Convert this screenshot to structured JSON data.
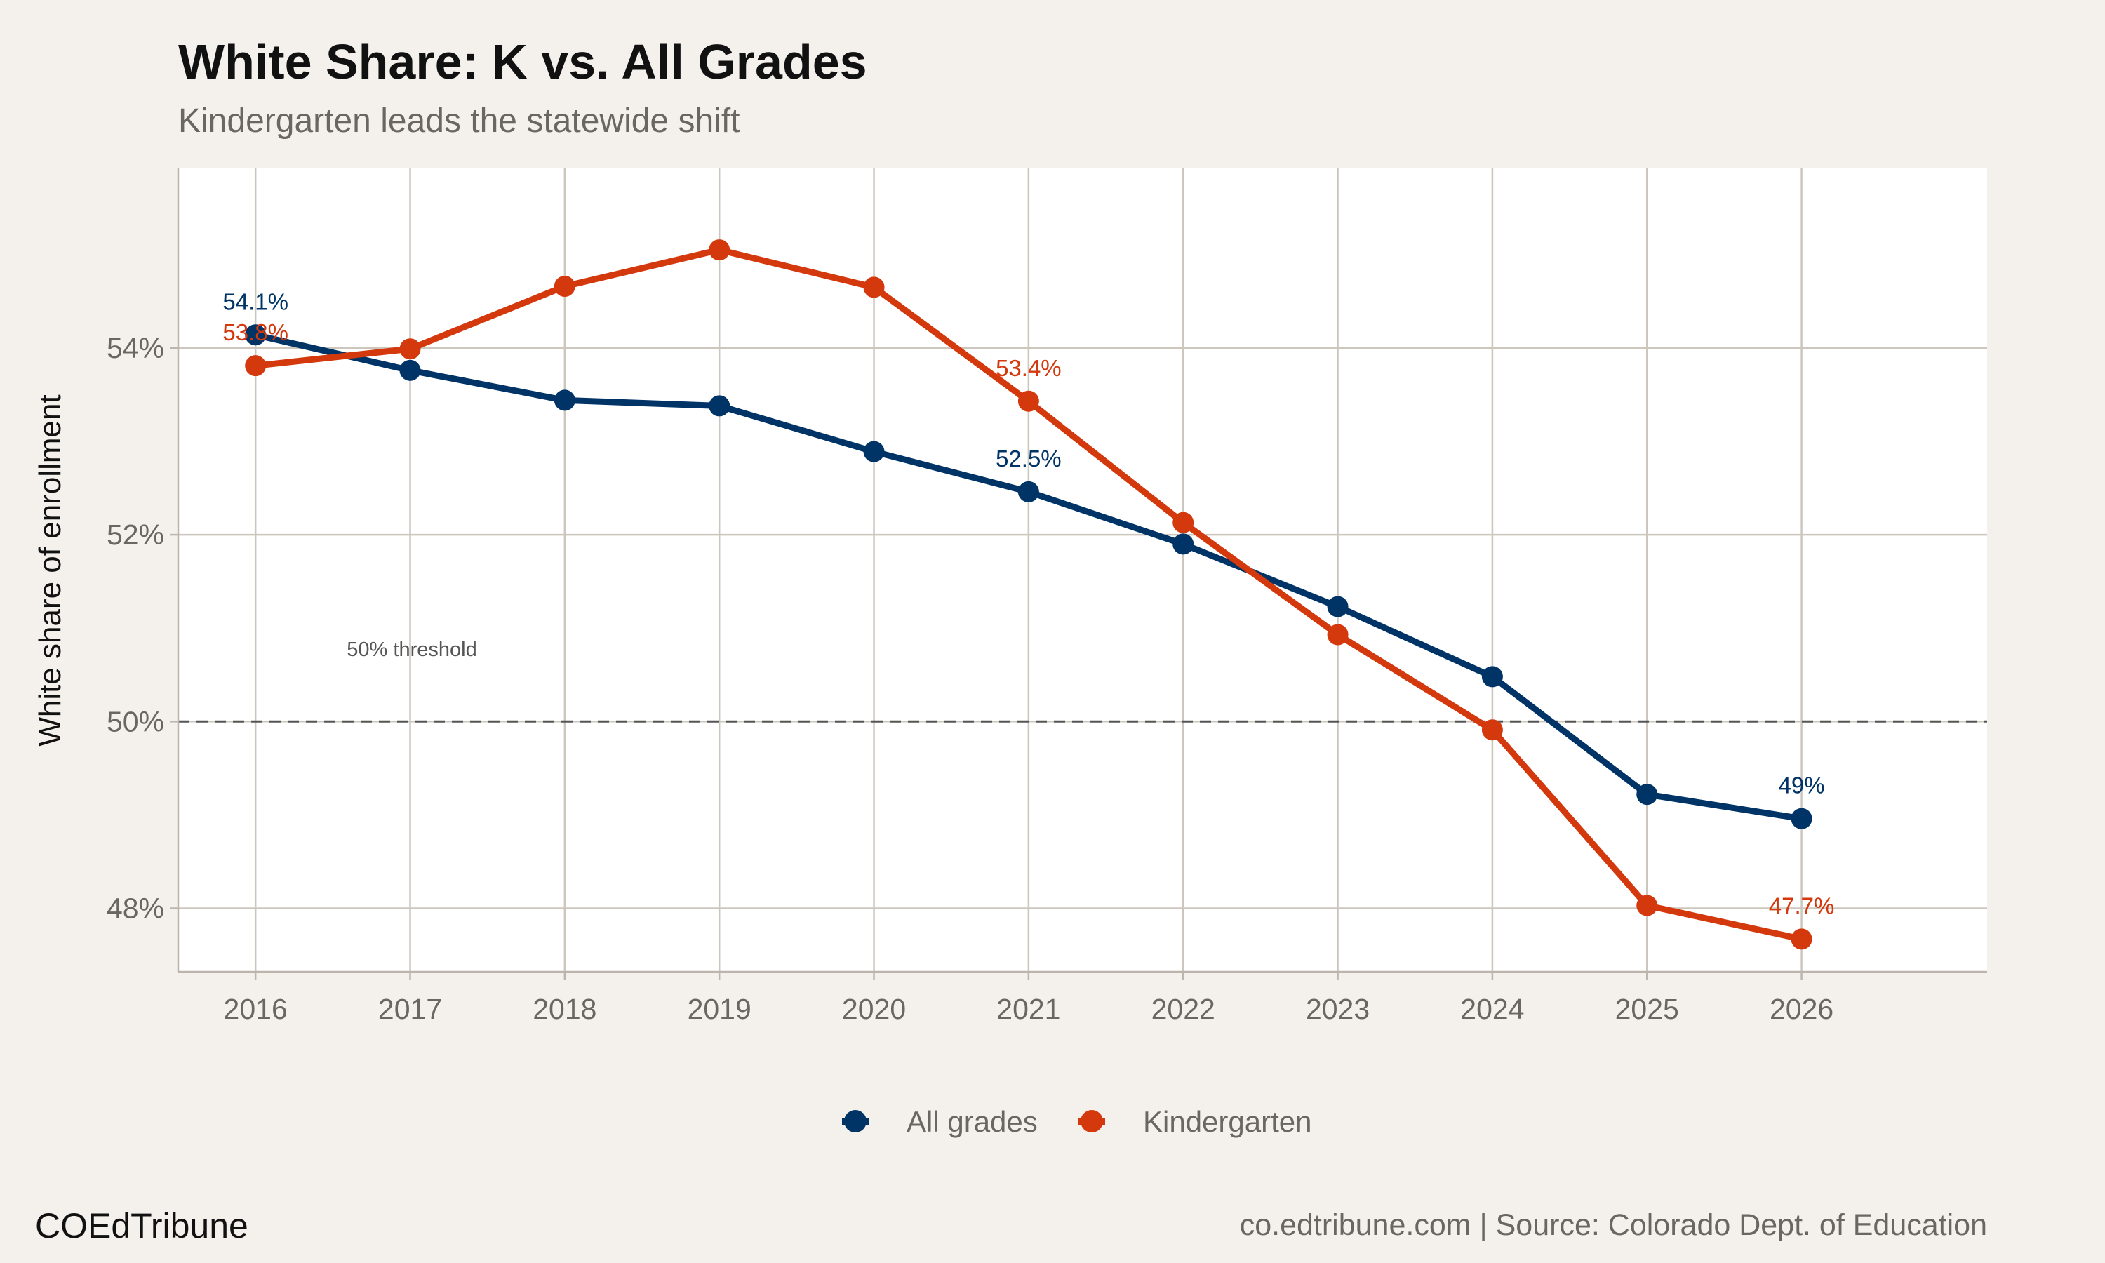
{
  "chart_data": {
    "type": "line",
    "title": "White Share: K vs. All Grades",
    "subtitle": "Kindergarten leads the statewide shift",
    "xlabel": "",
    "ylabel": "White share of enrollment",
    "x": [
      2016,
      2017,
      2018,
      2019,
      2020,
      2021,
      2022,
      2023,
      2024,
      2025,
      2026
    ],
    "x_tick_labels": [
      "2016",
      "2017",
      "2018",
      "2019",
      "2020",
      "2021",
      "2022",
      "2023",
      "2024",
      "2025",
      "2026"
    ],
    "xlim": [
      2015.5,
      2027.2
    ],
    "ylim": [
      47.32,
      55.93
    ],
    "y_ticks": [
      48,
      50,
      52,
      54
    ],
    "y_tick_labels": [
      "48%",
      "50%",
      "52%",
      "54%"
    ],
    "grid": true,
    "legend_position": "bottom",
    "series": [
      {
        "name": "All grades",
        "color": "#003366",
        "values": [
          54.14,
          53.76,
          53.44,
          53.38,
          52.89,
          52.46,
          51.9,
          51.23,
          50.48,
          49.22,
          48.96
        ],
        "labels": [
          {
            "x": 2016,
            "text": "54.1%"
          },
          {
            "x": 2021,
            "text": "52.5%"
          },
          {
            "x": 2026,
            "text": "49%"
          }
        ]
      },
      {
        "name": "Kindergarten",
        "color": "#d4380d",
        "values": [
          53.81,
          53.99,
          54.66,
          55.05,
          54.65,
          53.43,
          52.13,
          50.93,
          49.91,
          48.03,
          47.67
        ],
        "labels": [
          {
            "x": 2016,
            "text": "53.8%"
          },
          {
            "x": 2021,
            "text": "53.4%"
          },
          {
            "x": 2026,
            "text": "47.7%"
          }
        ]
      }
    ],
    "reference_line": {
      "y": 50,
      "label": "50% threshold"
    }
  },
  "footer": {
    "brand": "COEdTribune",
    "source": "co.edtribune.com | Source: Colorado Dept. of Education"
  }
}
